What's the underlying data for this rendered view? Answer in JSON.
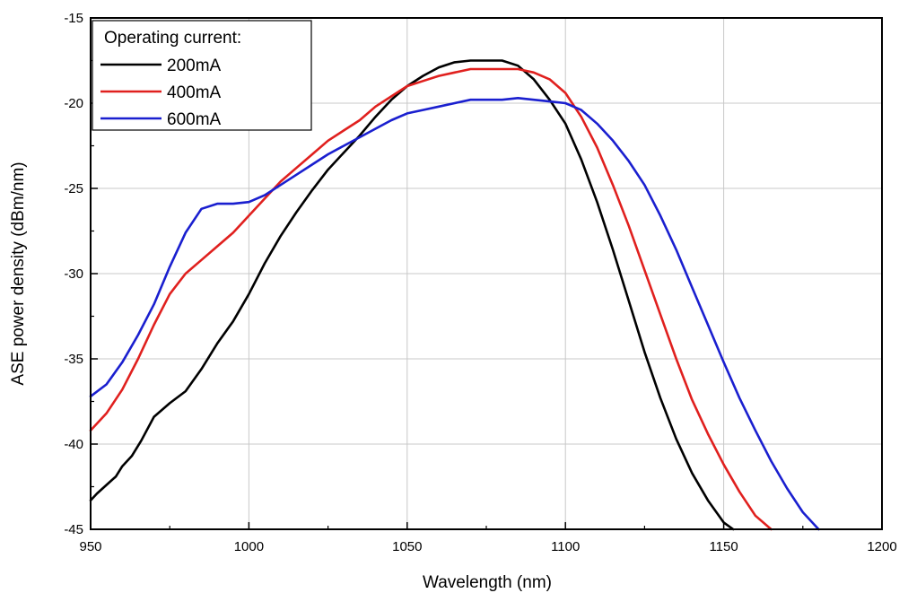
{
  "chart_data": {
    "type": "line",
    "xlabel": "Wavelength (nm)",
    "ylabel": "ASE power density (dBm/nm)",
    "xlim": [
      950,
      1200
    ],
    "ylim": [
      -45,
      -15
    ],
    "x_ticks": [
      950,
      1000,
      1050,
      1100,
      1150,
      1200
    ],
    "y_ticks": [
      -15,
      -20,
      -25,
      -30,
      -35,
      -40,
      -45
    ],
    "grid": true,
    "legend": {
      "title": "Operating current:",
      "position": "top-left"
    },
    "series": [
      {
        "name": "200mA",
        "color": "#000000",
        "x": [
          950,
          952,
          955,
          958,
          960,
          963,
          966,
          970,
          975,
          980,
          985,
          990,
          995,
          1000,
          1005,
          1010,
          1015,
          1020,
          1025,
          1030,
          1035,
          1040,
          1045,
          1050,
          1055,
          1060,
          1065,
          1070,
          1075,
          1080,
          1085,
          1090,
          1095,
          1100,
          1105,
          1110,
          1115,
          1120,
          1125,
          1130,
          1135,
          1140,
          1145,
          1150,
          1153
        ],
        "y": [
          -43.3,
          -42.9,
          -42.4,
          -41.9,
          -41.3,
          -40.7,
          -39.8,
          -38.4,
          -37.6,
          -36.9,
          -35.6,
          -34.1,
          -32.8,
          -31.2,
          -29.4,
          -27.8,
          -26.4,
          -25.1,
          -23.9,
          -22.9,
          -21.9,
          -20.8,
          -19.8,
          -19.0,
          -18.4,
          -17.9,
          -17.6,
          -17.5,
          -17.5,
          -17.5,
          -17.8,
          -18.6,
          -19.8,
          -21.2,
          -23.3,
          -25.8,
          -28.6,
          -31.6,
          -34.6,
          -37.3,
          -39.7,
          -41.7,
          -43.3,
          -44.6,
          -45.0
        ]
      },
      {
        "name": "400mA",
        "color": "#e0201e",
        "x": [
          950,
          955,
          960,
          965,
          970,
          975,
          980,
          985,
          990,
          995,
          1000,
          1005,
          1010,
          1015,
          1020,
          1025,
          1030,
          1035,
          1040,
          1045,
          1050,
          1055,
          1060,
          1065,
          1070,
          1075,
          1080,
          1085,
          1090,
          1095,
          1100,
          1105,
          1110,
          1115,
          1120,
          1125,
          1130,
          1135,
          1140,
          1145,
          1150,
          1155,
          1160,
          1165
        ],
        "y": [
          -39.2,
          -38.2,
          -36.8,
          -35.0,
          -33.0,
          -31.2,
          -30.0,
          -29.2,
          -28.4,
          -27.6,
          -26.6,
          -25.6,
          -24.6,
          -23.8,
          -23.0,
          -22.2,
          -21.6,
          -21.0,
          -20.2,
          -19.6,
          -19.0,
          -18.7,
          -18.4,
          -18.2,
          -18.0,
          -18.0,
          -18.0,
          -18.0,
          -18.2,
          -18.6,
          -19.4,
          -20.8,
          -22.6,
          -24.8,
          -27.2,
          -29.8,
          -32.4,
          -35.0,
          -37.4,
          -39.4,
          -41.2,
          -42.8,
          -44.2,
          -45.0
        ]
      },
      {
        "name": "600mA",
        "color": "#1a1fcf",
        "x": [
          950,
          955,
          960,
          965,
          970,
          975,
          980,
          985,
          990,
          995,
          1000,
          1005,
          1010,
          1015,
          1020,
          1025,
          1030,
          1035,
          1040,
          1045,
          1050,
          1055,
          1060,
          1065,
          1070,
          1075,
          1080,
          1085,
          1090,
          1095,
          1100,
          1105,
          1110,
          1115,
          1120,
          1125,
          1130,
          1135,
          1140,
          1145,
          1150,
          1155,
          1160,
          1165,
          1170,
          1175,
          1180
        ],
        "y": [
          -37.2,
          -36.5,
          -35.2,
          -33.6,
          -31.8,
          -29.6,
          -27.6,
          -26.2,
          -25.9,
          -25.9,
          -25.8,
          -25.4,
          -24.8,
          -24.2,
          -23.6,
          -23.0,
          -22.5,
          -22.0,
          -21.5,
          -21.0,
          -20.6,
          -20.4,
          -20.2,
          -20.0,
          -19.8,
          -19.8,
          -19.8,
          -19.7,
          -19.8,
          -19.9,
          -20.0,
          -20.4,
          -21.2,
          -22.2,
          -23.4,
          -24.8,
          -26.6,
          -28.6,
          -30.8,
          -33.0,
          -35.2,
          -37.3,
          -39.2,
          -41.0,
          -42.6,
          -44.0,
          -45.0
        ]
      }
    ]
  }
}
